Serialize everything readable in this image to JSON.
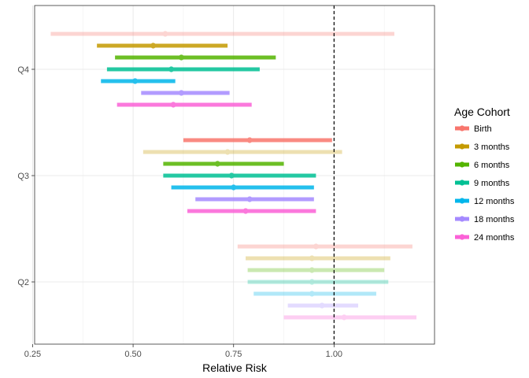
{
  "chart_data": {
    "type": "forest",
    "xlabel": "Relative Risk",
    "ylabel": "",
    "xlim": [
      0.255,
      1.25
    ],
    "x_ticks": [
      0.25,
      0.5,
      0.75,
      1.0
    ],
    "x_tick_labels": [
      "0.25",
      "0.50",
      "0.75",
      "1.00"
    ],
    "reference_line": 1.0,
    "reference_line_style": "dashed",
    "grid": true,
    "categories": [
      "Q4",
      "Q3",
      "Q2"
    ],
    "legend": {
      "title": "Age Cohort",
      "placement": "right",
      "entries": [
        "Birth",
        "3 months",
        "6 months",
        "9 months",
        "12 months",
        "18 months",
        "24 months"
      ]
    },
    "colors": {
      "Birth": "#F8766D",
      "3 months": "#C49A00",
      "6 months": "#53B400",
      "9 months": "#00C094",
      "12 months": "#00B6EB",
      "18 months": "#A58AFF",
      "24 months": "#FB61D7"
    },
    "series": [
      {
        "name": "Birth",
        "opacity": [
          0.3,
          0.85,
          0.3
        ],
        "estimate": [
          0.58,
          0.79,
          0.955
        ],
        "lower": [
          0.295,
          0.625,
          0.76
        ],
        "upper": [
          1.15,
          0.995,
          1.195
        ]
      },
      {
        "name": "3 months",
        "opacity": [
          0.85,
          0.3,
          0.3
        ],
        "estimate": [
          0.55,
          0.735,
          0.945
        ],
        "lower": [
          0.41,
          0.525,
          0.78
        ],
        "upper": [
          0.735,
          1.02,
          1.14
        ]
      },
      {
        "name": "6 months",
        "opacity": [
          0.85,
          0.85,
          0.3
        ],
        "estimate": [
          0.62,
          0.71,
          0.945
        ],
        "lower": [
          0.455,
          0.575,
          0.785
        ],
        "upper": [
          0.855,
          0.875,
          1.125
        ]
      },
      {
        "name": "9 months",
        "opacity": [
          0.85,
          0.85,
          0.3
        ],
        "estimate": [
          0.595,
          0.745,
          0.945
        ],
        "lower": [
          0.435,
          0.575,
          0.785
        ],
        "upper": [
          0.815,
          0.955,
          1.135
        ]
      },
      {
        "name": "12 months",
        "opacity": [
          0.85,
          0.85,
          0.3
        ],
        "estimate": [
          0.505,
          0.75,
          0.945
        ],
        "lower": [
          0.42,
          0.595,
          0.8
        ],
        "upper": [
          0.605,
          0.95,
          1.105
        ]
      },
      {
        "name": "18 months",
        "opacity": [
          0.85,
          0.85,
          0.3
        ],
        "estimate": [
          0.62,
          0.79,
          0.97
        ],
        "lower": [
          0.52,
          0.655,
          0.885
        ],
        "upper": [
          0.74,
          0.95,
          1.06
        ]
      },
      {
        "name": "24 months",
        "opacity": [
          0.85,
          0.85,
          0.3
        ],
        "estimate": [
          0.6,
          0.78,
          1.025
        ],
        "lower": [
          0.46,
          0.635,
          0.875
        ],
        "upper": [
          0.795,
          0.955,
          1.205
        ]
      }
    ]
  }
}
